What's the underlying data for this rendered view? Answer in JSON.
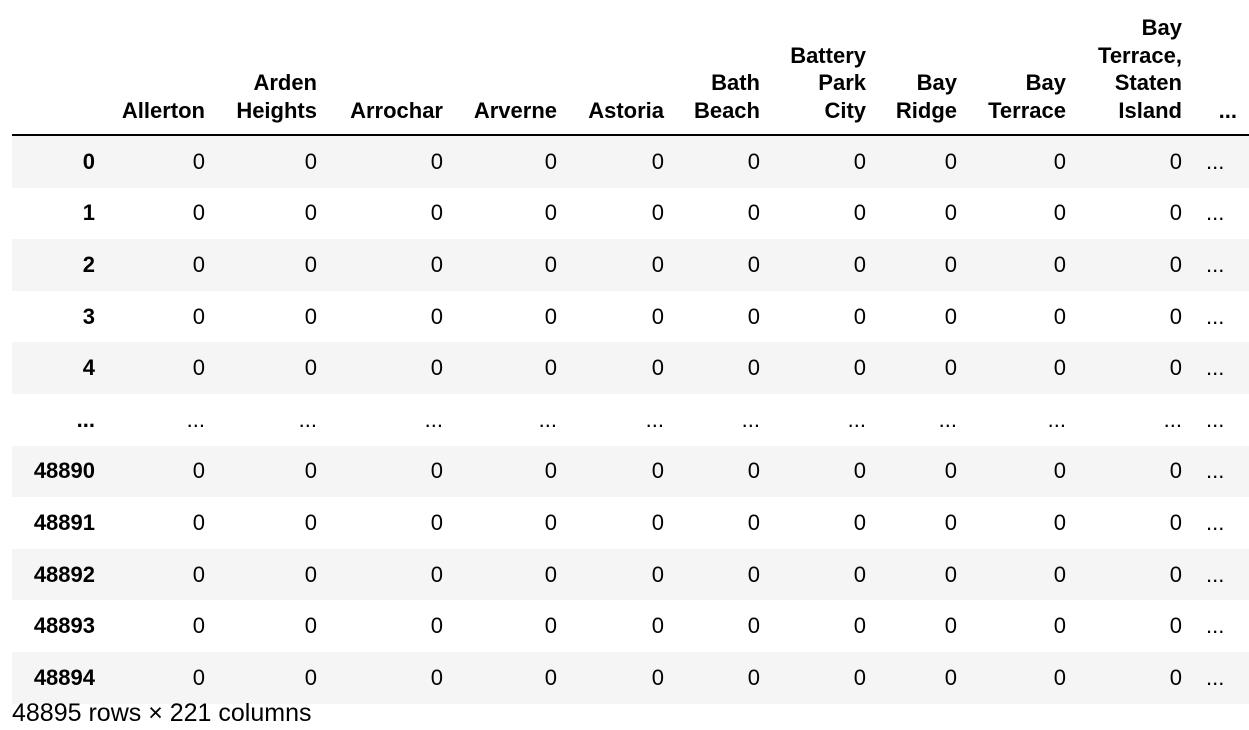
{
  "dataframe": {
    "columns": [
      "",
      "Allerton",
      "Arden Heights",
      "Arrochar",
      "Arverne",
      "Astoria",
      "Bath Beach",
      "Battery Park City",
      "Bay Ridge",
      "Bay Terrace",
      "Bay Terrace, Staten Island",
      "..."
    ],
    "rows": [
      {
        "index": "0",
        "cells": [
          "0",
          "0",
          "0",
          "0",
          "0",
          "0",
          "0",
          "0",
          "0",
          "0",
          "..."
        ]
      },
      {
        "index": "1",
        "cells": [
          "0",
          "0",
          "0",
          "0",
          "0",
          "0",
          "0",
          "0",
          "0",
          "0",
          "..."
        ]
      },
      {
        "index": "2",
        "cells": [
          "0",
          "0",
          "0",
          "0",
          "0",
          "0",
          "0",
          "0",
          "0",
          "0",
          "..."
        ]
      },
      {
        "index": "3",
        "cells": [
          "0",
          "0",
          "0",
          "0",
          "0",
          "0",
          "0",
          "0",
          "0",
          "0",
          "..."
        ]
      },
      {
        "index": "4",
        "cells": [
          "0",
          "0",
          "0",
          "0",
          "0",
          "0",
          "0",
          "0",
          "0",
          "0",
          "..."
        ]
      },
      {
        "index": "...",
        "cells": [
          "...",
          "...",
          "...",
          "...",
          "...",
          "...",
          "...",
          "...",
          "...",
          "...",
          "..."
        ]
      },
      {
        "index": "48890",
        "cells": [
          "0",
          "0",
          "0",
          "0",
          "0",
          "0",
          "0",
          "0",
          "0",
          "0",
          "..."
        ]
      },
      {
        "index": "48891",
        "cells": [
          "0",
          "0",
          "0",
          "0",
          "0",
          "0",
          "0",
          "0",
          "0",
          "0",
          "..."
        ]
      },
      {
        "index": "48892",
        "cells": [
          "0",
          "0",
          "0",
          "0",
          "0",
          "0",
          "0",
          "0",
          "0",
          "0",
          "..."
        ]
      },
      {
        "index": "48893",
        "cells": [
          "0",
          "0",
          "0",
          "0",
          "0",
          "0",
          "0",
          "0",
          "0",
          "0",
          "..."
        ]
      },
      {
        "index": "48894",
        "cells": [
          "0",
          "0",
          "0",
          "0",
          "0",
          "0",
          "0",
          "0",
          "0",
          "0",
          "..."
        ]
      }
    ],
    "shape_text": "48895 rows × 221 columns"
  }
}
